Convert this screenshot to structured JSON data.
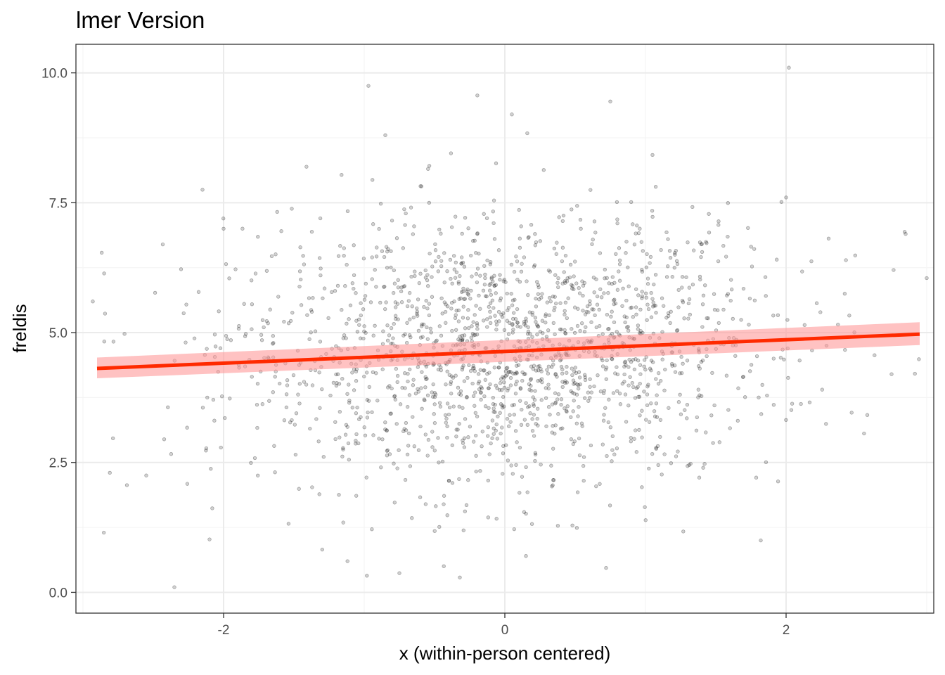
{
  "chart_data": {
    "type": "scatter",
    "title": "lmer Version",
    "xlabel": "x (within-person centered)",
    "ylabel": "freldis",
    "xlim": [
      -3.05,
      3.05
    ],
    "ylim": [
      -0.4,
      10.55
    ],
    "x_ticks": [
      -2,
      0,
      2
    ],
    "x_tick_labels": [
      "-2",
      "0",
      "2"
    ],
    "y_ticks": [
      0,
      2.5,
      5,
      7.5,
      10
    ],
    "y_tick_labels": [
      "0.0",
      "2.5",
      "5.0",
      "7.5",
      "10.0"
    ],
    "grid": true,
    "legend": "none",
    "colors": {
      "points": "#000000",
      "fit_line": "#ff2a00",
      "ribbon": "#ff9999",
      "grid_major": "#ebebeb",
      "grid_minor": "#f5f5f5",
      "panel_border": "#333333"
    },
    "fit": {
      "x": [
        -2.9,
        2.95
      ],
      "y": [
        4.31,
        4.97
      ],
      "ci_lower": [
        4.12,
        4.76
      ],
      "ci_upper": [
        4.52,
        5.2
      ]
    },
    "points_approx_count": 1800,
    "points_sample": [
      {
        "x": -2.35,
        "y": 0.1
      },
      {
        "x": -2.55,
        "y": 2.25
      },
      {
        "x": -2.15,
        "y": 7.75
      },
      {
        "x": -2.93,
        "y": 5.6
      },
      {
        "x": -2.0,
        "y": 7.0
      },
      {
        "x": -0.97,
        "y": 9.75
      },
      {
        "x": 0.05,
        "y": 9.2
      },
      {
        "x": 0.75,
        "y": 9.45
      },
      {
        "x": 2.02,
        "y": 10.1
      },
      {
        "x": 3.0,
        "y": 6.05
      },
      {
        "x": 2.85,
        "y": 6.9
      },
      {
        "x": 0.72,
        "y": 0.47
      },
      {
        "x": -0.75,
        "y": 0.37
      },
      {
        "x": 1.82,
        "y": 1.0
      },
      {
        "x": 2.0,
        "y": 7.6
      },
      {
        "x": -0.85,
        "y": 8.8
      },
      {
        "x": 1.05,
        "y": 8.42
      },
      {
        "x": -2.1,
        "y": 1.02
      },
      {
        "x": 0.15,
        "y": 0.7
      },
      {
        "x": 2.75,
        "y": 4.2
      }
    ]
  }
}
